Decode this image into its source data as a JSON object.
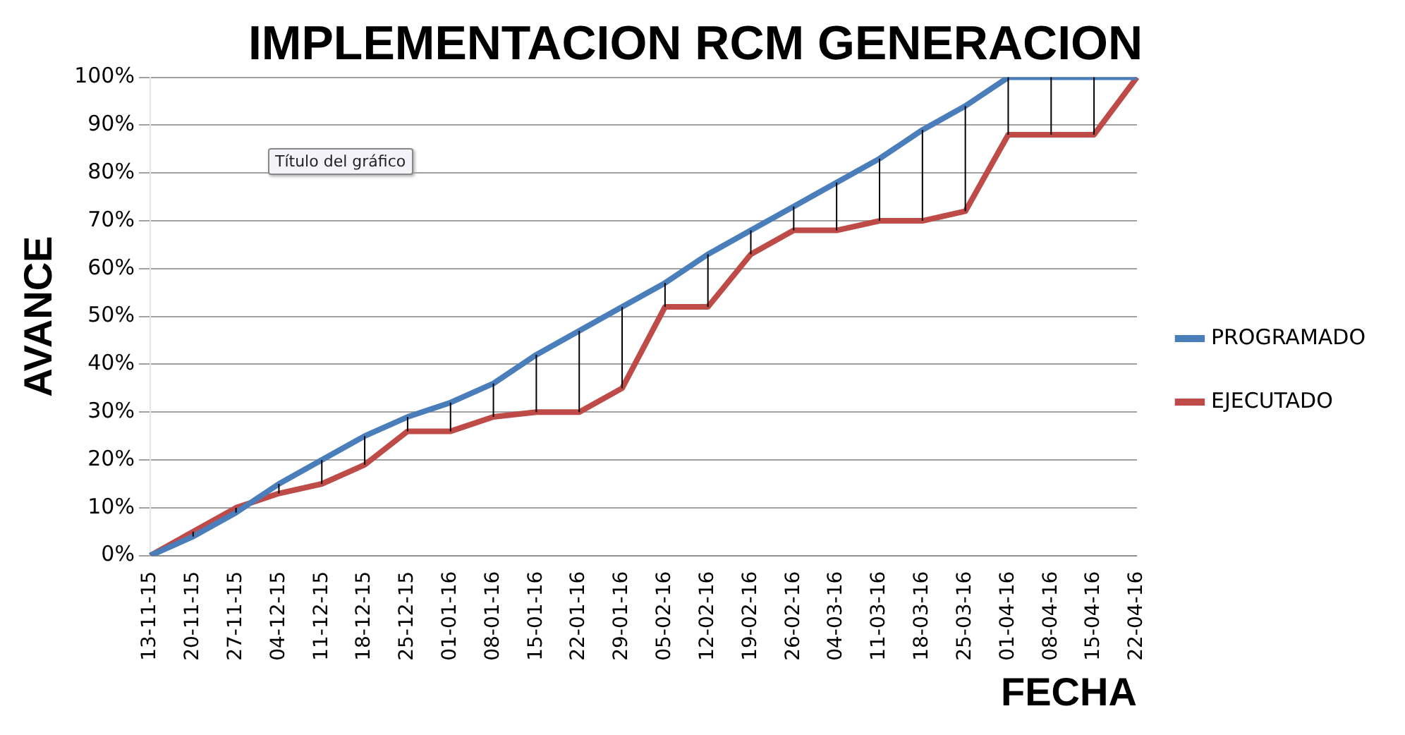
{
  "chart_data": {
    "type": "line",
    "title": "IMPLEMENTACION RCM GENERACION",
    "xlabel": "FECHA",
    "ylabel": "AVANCE",
    "annotations": [
      "Título del gráfico"
    ],
    "categories": [
      "13-11-15",
      "20-11-15",
      "27-11-15",
      "04-12-15",
      "11-12-15",
      "18-12-15",
      "25-12-15",
      "01-01-16",
      "08-01-16",
      "15-01-16",
      "22-01-16",
      "29-01-16",
      "05-02-16",
      "12-02-16",
      "19-02-16",
      "26-02-16",
      "04-03-16",
      "11-03-16",
      "18-03-16",
      "25-03-16",
      "01-04-16",
      "08-04-16",
      "15-04-16",
      "22-04-16"
    ],
    "series": [
      {
        "name": "PROGRAMADO",
        "color": "#4a7ebb",
        "values": [
          0,
          4,
          9,
          15,
          20,
          25,
          29,
          32,
          36,
          42,
          47,
          52,
          57,
          63,
          68,
          73,
          78,
          83,
          89,
          94,
          100,
          100,
          100,
          100
        ],
        "errors": [
          null,
          [
            4,
            5
          ],
          [
            9,
            10
          ],
          [
            13,
            15
          ],
          [
            15,
            20
          ],
          [
            19,
            25
          ],
          [
            26,
            29
          ],
          [
            26,
            32
          ],
          [
            29,
            36
          ],
          [
            30,
            42
          ],
          [
            30,
            47
          ],
          [
            35,
            52
          ],
          [
            52,
            57
          ],
          [
            52,
            63
          ],
          [
            63,
            68
          ],
          [
            68,
            73
          ],
          [
            68,
            78
          ],
          [
            70,
            83
          ],
          [
            70,
            89
          ],
          [
            72,
            94
          ],
          [
            88,
            100
          ],
          [
            88,
            100
          ],
          [
            88,
            100
          ],
          null
        ]
      },
      {
        "name": "EJECUTADO",
        "color": "#be4b48",
        "values": [
          0,
          5,
          10,
          13,
          15,
          19,
          26,
          26,
          29,
          30,
          30,
          35,
          52,
          52,
          63,
          68,
          68,
          70,
          70,
          72,
          88,
          88,
          88,
          100
        ]
      }
    ],
    "ylim": [
      0,
      100
    ],
    "yticks": [
      {
        "value": 0,
        "label": "0%"
      },
      {
        "value": 10,
        "label": "10%"
      },
      {
        "value": 20,
        "label": "20%"
      },
      {
        "value": 30,
        "label": "30%"
      },
      {
        "value": 40,
        "label": "40%"
      },
      {
        "value": 50,
        "label": "50%"
      },
      {
        "value": 60,
        "label": "60%"
      },
      {
        "value": 70,
        "label": "70%"
      },
      {
        "value": 80,
        "label": "80%"
      },
      {
        "value": 90,
        "label": "90%"
      },
      {
        "value": 100,
        "label": "100%"
      }
    ],
    "grid": "y",
    "legend": "right",
    "marker": "none",
    "line_style": "solid"
  }
}
